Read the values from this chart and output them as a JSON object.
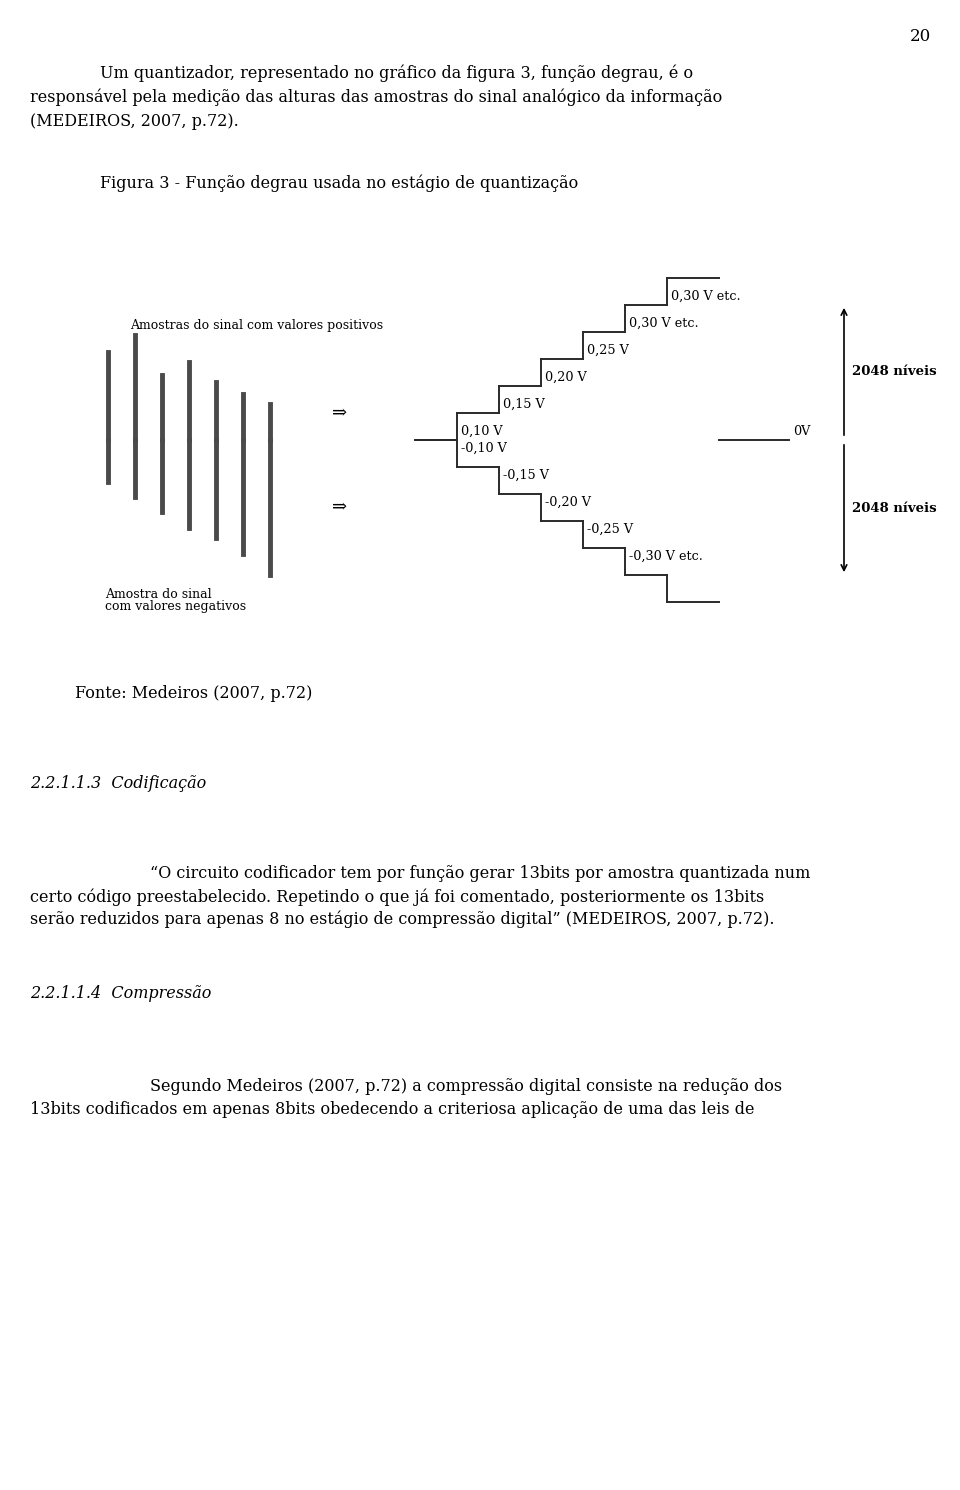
{
  "page_number": "20",
  "bg_color": "#ffffff",
  "text_color": "#1a1a1a",
  "text_color_dark": "#000000",
  "font_family": "serif",
  "fig_title": "Figura 3 - Função degrau usada no estágio de quantização",
  "fig_source": "Fonte: Medeiros (2007, p.72)",
  "section_title": "2.2.1.1.3  Codificação",
  "section2_title": "2.2.1.1.4  Compressão",
  "label_positive": "Amostras do sinal com valores positivos",
  "label_negative_line1": "Amostra do sinal",
  "label_negative_line2": "com valores negativos",
  "label_0v": "0V",
  "label_030": "0,30 V etc.",
  "label_025": "0,25 V",
  "label_020": "0,20 V",
  "label_015": "0,15 V",
  "label_010": "0,10 V",
  "label_n010": "-0,10 V",
  "label_n015": "-0,15 V",
  "label_n020": "-0,20 V",
  "label_n025": "-0,25 V",
  "label_n030": "-0,30 V etc.",
  "label_2048_top": "2048 níveis",
  "label_2048_bot": "2048 níveis",
  "arrow_symbol": "⇒",
  "para1_line1": "Um quantizador, representado no gráfico da figura 3, função degrau, é o",
  "para1_line2": "responsável pela medição das alturas das amostras do sinal analógico da informação",
  "para1_line3": "(MEDEIROS, 2007, p.72).",
  "quote_line1": "“O circuito codificador tem por função gerar 13bits por amostra quantizada num",
  "quote_line2": "certo código preestabelecido. Repetindo o que já foi comentado, posteriormente os 13bits",
  "quote_line3": "serão reduzidos para apenas 8 no estágio de compressão digital” (MEDEIROS, 2007, p.72).",
  "para2_line1": "Segundo Medeiros (2007, p.72) a compressão digital consiste na redução dos",
  "para2_line2": "13bits codificados em apenas 8bits obedecendo a criteriosa aplicação de uma das leis de"
}
